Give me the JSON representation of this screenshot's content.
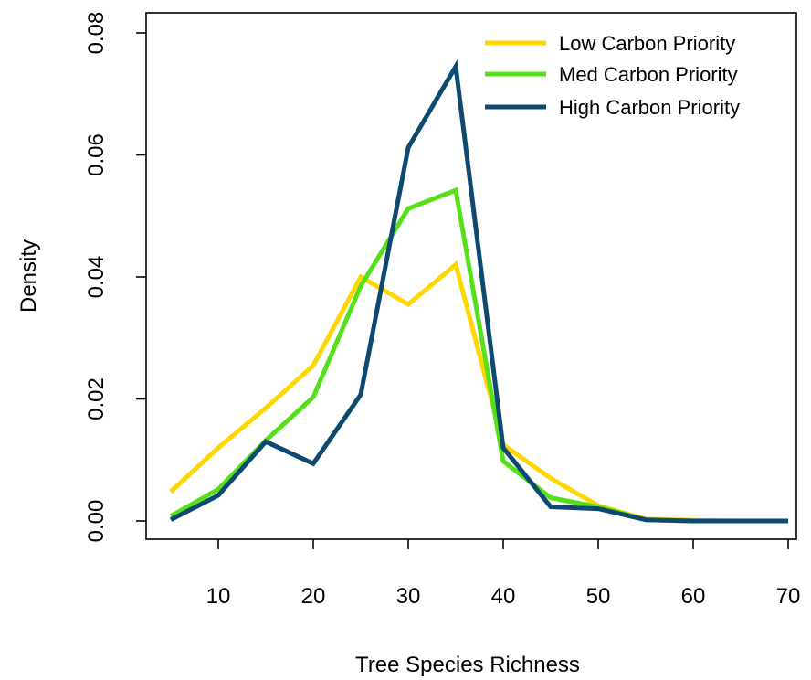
{
  "chart_data": {
    "type": "line",
    "title": "",
    "xlabel": "Tree Species Richness",
    "ylabel": "Density",
    "xlim": [
      5,
      70
    ],
    "ylim": [
      0,
      0.08
    ],
    "x": [
      5,
      10,
      15,
      20,
      25,
      30,
      35,
      40,
      45,
      50,
      55,
      60,
      65,
      70
    ],
    "x_ticks": [
      10,
      20,
      30,
      40,
      50,
      60,
      70
    ],
    "y_ticks": [
      0.0,
      0.02,
      0.04,
      0.06,
      0.08
    ],
    "y_tick_labels": [
      "0.00",
      "0.02",
      "0.04",
      "0.06",
      "0.08"
    ],
    "grid": false,
    "legend_position": "top-right",
    "series": [
      {
        "name": "Low Carbon Priority",
        "color": "#FFD700",
        "values": [
          0.0048,
          0.012,
          0.0185,
          0.0255,
          0.04,
          0.0355,
          0.042,
          0.0125,
          0.007,
          0.0025,
          0.0003,
          0.0001,
          0.0,
          0.0
        ]
      },
      {
        "name": "Med Carbon Priority",
        "color": "#55E01A",
        "values": [
          0.0008,
          0.0052,
          0.0132,
          0.0203,
          0.0385,
          0.0512,
          0.0542,
          0.0098,
          0.0038,
          0.0023,
          0.0002,
          0.0,
          0.0,
          0.0
        ]
      },
      {
        "name": "High Carbon Priority",
        "color": "#0E4A70",
        "values": [
          0.0002,
          0.0042,
          0.013,
          0.0094,
          0.0207,
          0.0612,
          0.0745,
          0.012,
          0.0023,
          0.002,
          0.0002,
          0.0,
          0.0,
          0.0
        ]
      }
    ]
  }
}
